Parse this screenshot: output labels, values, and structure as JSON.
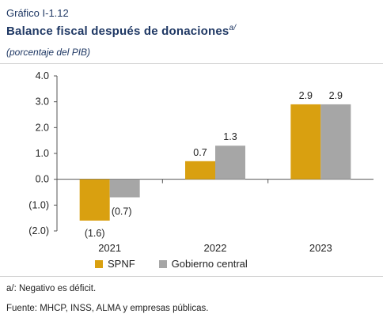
{
  "header": {
    "figure_number": "Gráfico I-1.12",
    "title": "Balance fiscal después de donaciones",
    "title_note": "a/",
    "subtitle": "(porcentaje del PIB)"
  },
  "chart_data": {
    "type": "bar",
    "categories": [
      "2021",
      "2022",
      "2023"
    ],
    "series": [
      {
        "name": "SPNF",
        "values": [
          -1.6,
          0.7,
          2.9
        ],
        "labels": [
          "(1.6)",
          "0.7",
          "2.9"
        ],
        "color": "#d9a010"
      },
      {
        "name": "Gobierno central",
        "values": [
          -0.7,
          1.3,
          2.9
        ],
        "labels": [
          "(0.7)",
          "1.3",
          "2.9"
        ],
        "color": "#a6a6a6"
      }
    ],
    "ylim": [
      -2.0,
      4.0
    ],
    "yticks": [
      4.0,
      3.0,
      2.0,
      1.0,
      0.0,
      -1.0,
      -2.0
    ],
    "ytick_labels": [
      "4.0",
      "3.0",
      "2.0",
      "1.0",
      "0.0",
      "(1.0)",
      "(2.0)"
    ],
    "grid": false,
    "legend_position": "bottom",
    "xlabel": "",
    "ylabel": ""
  },
  "footnotes": {
    "note": "a/: Negativo es déficit.",
    "source": "Fuente: MHCP, INSS, ALMA y empresas públicas."
  }
}
